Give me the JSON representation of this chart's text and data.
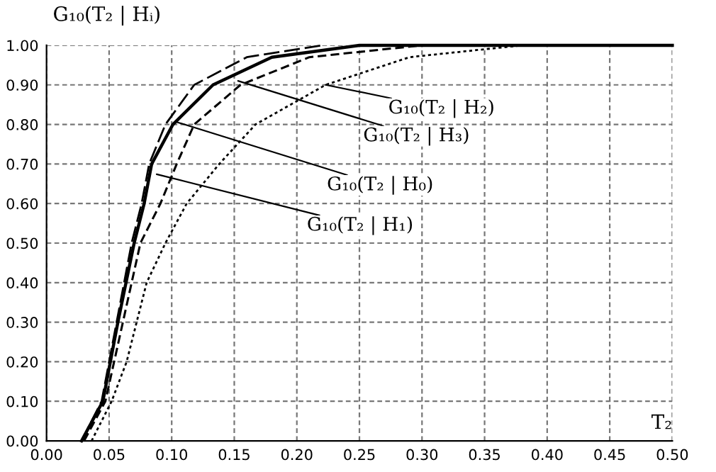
{
  "chart_data": {
    "type": "line",
    "xlabel": "T₂",
    "ylabel": "G₁₀(T₂ | Hᵢ)",
    "series": [
      {
        "color": "#000000",
        "line_style": "solid",
        "x": [
          0.028,
          0.045,
          0.051,
          0.057,
          0.0635,
          0.07,
          0.078,
          0.084,
          0.101,
          0.133,
          0.18,
          0.25,
          0.5
        ],
        "values": [
          0,
          0.1,
          0.2,
          0.3,
          0.4,
          0.5,
          0.6,
          0.7,
          0.8,
          0.9,
          0.97,
          1,
          1
        ]
      },
      {
        "color": "#000000",
        "line_style": "longdash",
        "x": [
          0.028,
          0.044,
          0.05,
          0.056,
          0.062,
          0.068,
          0.076,
          0.082,
          0.095,
          0.118,
          0.16,
          0.22
        ],
        "values": [
          0,
          0.1,
          0.2,
          0.3,
          0.4,
          0.5,
          0.6,
          0.7,
          0.8,
          0.9,
          0.97,
          1
        ]
      },
      {
        "color": "#000000",
        "line_style": "dashed",
        "x": [
          0.03,
          0.047,
          0.054,
          0.061,
          0.068,
          0.075,
          0.091,
          0.104,
          0.118,
          0.155,
          0.21,
          0.3
        ],
        "values": [
          0,
          0.1,
          0.2,
          0.3,
          0.4,
          0.5,
          0.6,
          0.7,
          0.8,
          0.9,
          0.97,
          1
        ]
      },
      {
        "color": "#000000",
        "line_style": "dotted",
        "x": [
          0.036,
          0.052,
          0.064,
          0.072,
          0.08,
          0.095,
          0.112,
          0.138,
          0.167,
          0.223,
          0.29,
          0.38
        ],
        "values": [
          0,
          0.1,
          0.2,
          0.3,
          0.4,
          0.5,
          0.6,
          0.7,
          0.8,
          0.9,
          0.97,
          1
        ]
      }
    ],
    "annotations": [
      {
        "text": "G₁₀(T₂ | H₂)",
        "x": 0.223,
        "y": 0.9
      },
      {
        "text": "G₁₀(T₂ | H₃)",
        "x": 0.153,
        "y": 0.91
      },
      {
        "text": "G₁₀(T₂ | H₀)",
        "x": 0.104,
        "y": 0.806
      },
      {
        "text": "G₁₀(T₂ | H₁)",
        "x": 0.088,
        "y": 0.674
      }
    ],
    "xlim": [
      0,
      0.5
    ],
    "xticks": [
      {
        "value": 0,
        "label": "0.00"
      },
      {
        "value": 0.05,
        "label": "0.05"
      },
      {
        "value": 0.1,
        "label": "0.10"
      },
      {
        "value": 0.15,
        "label": "0.15"
      },
      {
        "value": 0.2,
        "label": "0.20"
      },
      {
        "value": 0.25,
        "label": "0.25"
      },
      {
        "value": 0.3,
        "label": "0.30"
      },
      {
        "value": 0.35,
        "label": "0.35"
      },
      {
        "value": 0.4,
        "label": "0.40"
      },
      {
        "value": 0.45,
        "label": "0.45"
      },
      {
        "value": 0.5,
        "label": "0.50"
      }
    ],
    "ylim": [
      0,
      1
    ],
    "yticks": [
      {
        "value": 0,
        "label": "0.00"
      },
      {
        "value": 0.1,
        "label": "0.10"
      },
      {
        "value": 0.2,
        "label": "0.20"
      },
      {
        "value": 0.3,
        "label": "0.30"
      },
      {
        "value": 0.4,
        "label": "0.40"
      },
      {
        "value": 0.5,
        "label": "0.50"
      },
      {
        "value": 0.6,
        "label": "0.60"
      },
      {
        "value": 0.7,
        "label": "0.70"
      },
      {
        "value": 0.8,
        "label": "0.80"
      },
      {
        "value": 0.9,
        "label": "0.90"
      },
      {
        "value": 1,
        "label": "1.00"
      }
    ],
    "grid": true
  }
}
